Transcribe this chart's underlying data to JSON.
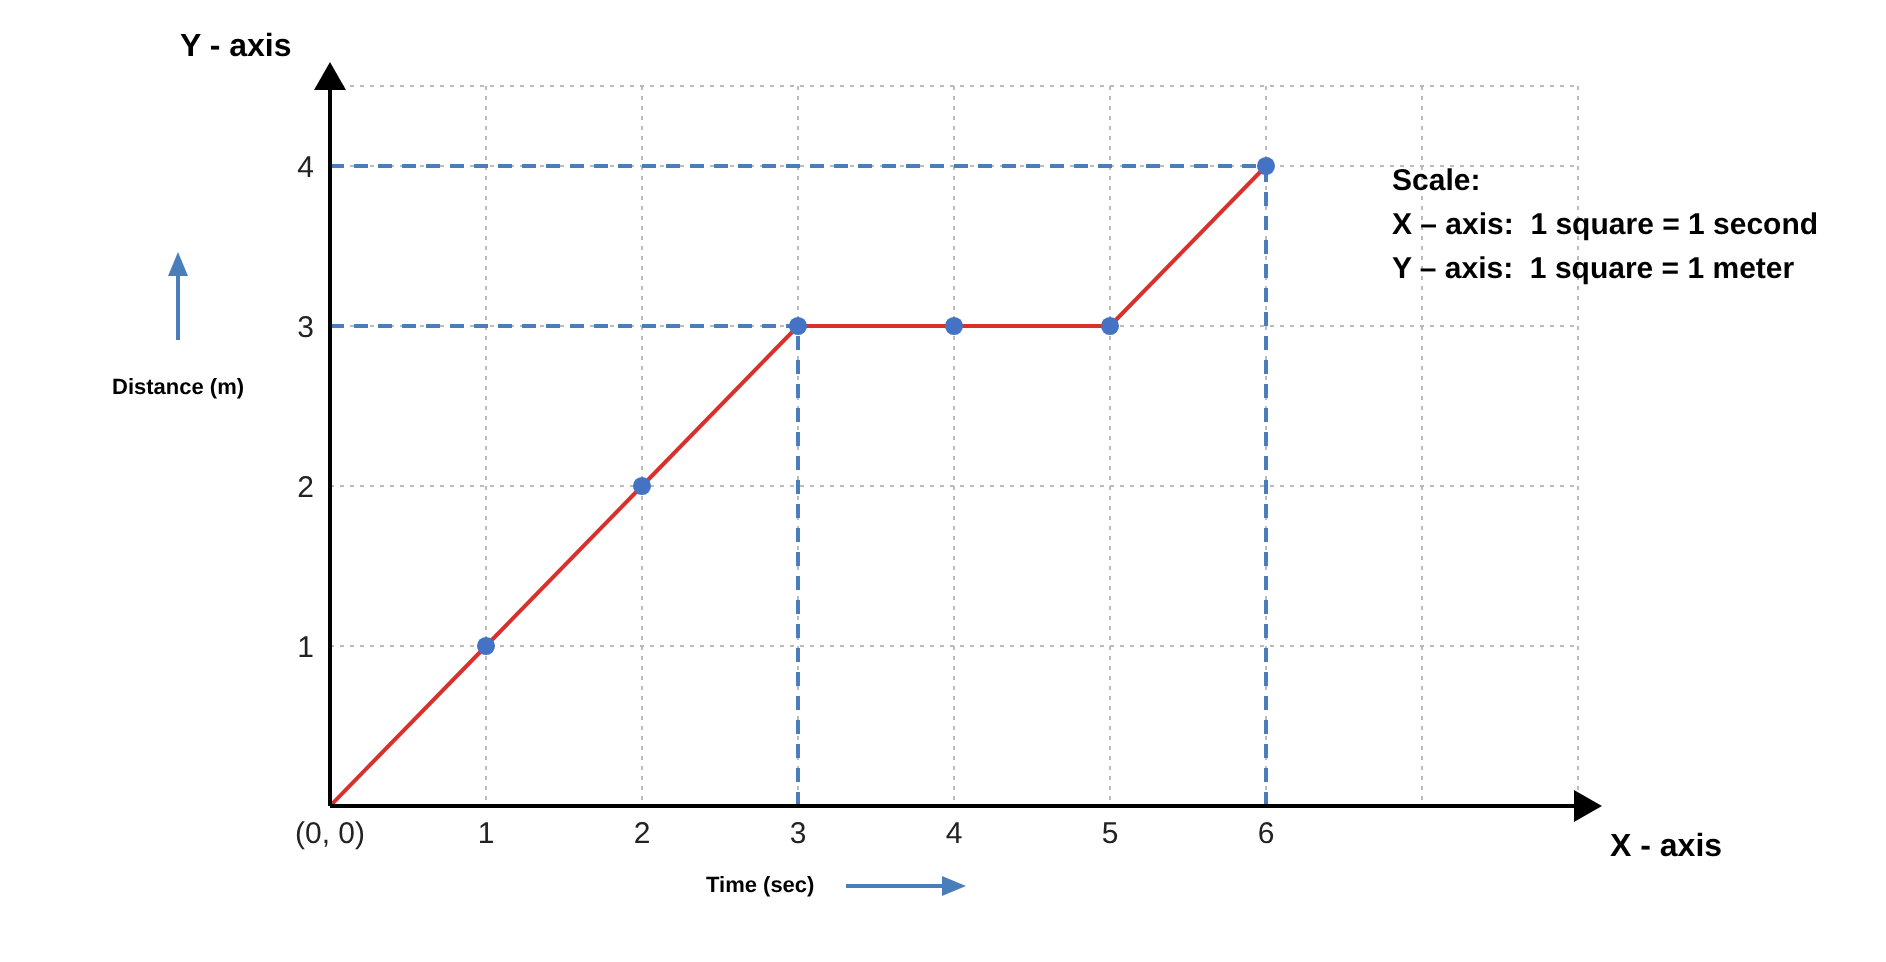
{
  "chart_data": {
    "type": "line",
    "xlabel": "Time (sec)",
    "ylabel": "Distance (m)",
    "annotations": [
      "X - axis",
      "Y - axis",
      "Scale:",
      "X – axis:  1 square = 1 second",
      "Y – axis:  1 square = 1 meter"
    ],
    "xlim": [
      0,
      8
    ],
    "ylim": [
      0,
      4.5
    ],
    "xticks": [
      {
        "value": 0,
        "label": "(0, 0)"
      },
      1,
      2,
      3,
      4,
      5,
      6,
      {
        "value": 7,
        "label": null
      },
      {
        "value": 8,
        "label": null
      }
    ],
    "yticks": [
      {
        "value": 0,
        "label": null
      },
      1,
      2,
      3,
      4
    ],
    "grid": true,
    "series": [
      {
        "color": "#4a7ebb",
        "line_style": "dashed",
        "marker": "none",
        "x": [
          0,
          6
        ],
        "values": [
          4,
          4
        ]
      },
      {
        "color": "#4a7ebb",
        "line_style": "dashed",
        "marker": "none",
        "x": [
          0,
          3
        ],
        "values": [
          3,
          3
        ]
      },
      {
        "color": "#4a7ebb",
        "line_style": "dashed",
        "marker": "none",
        "x": [
          3,
          3
        ],
        "values": [
          0,
          3
        ]
      },
      {
        "color": "#4a7ebb",
        "line_style": "dashed",
        "marker": "none",
        "x": [
          6,
          6
        ],
        "values": [
          0,
          4
        ]
      },
      {
        "color": "#d9302b",
        "line_style": "solid",
        "marker": "none",
        "x": [
          0,
          1,
          2,
          3,
          4,
          5,
          6
        ],
        "values": [
          0,
          1,
          2,
          3,
          3,
          3,
          4
        ]
      },
      {
        "type": "scatter",
        "color": "#4472c4",
        "marker": "circle",
        "x": [
          1,
          2,
          3,
          4,
          5,
          6
        ],
        "values": [
          1,
          2,
          3,
          3,
          3,
          4
        ]
      }
    ]
  }
}
